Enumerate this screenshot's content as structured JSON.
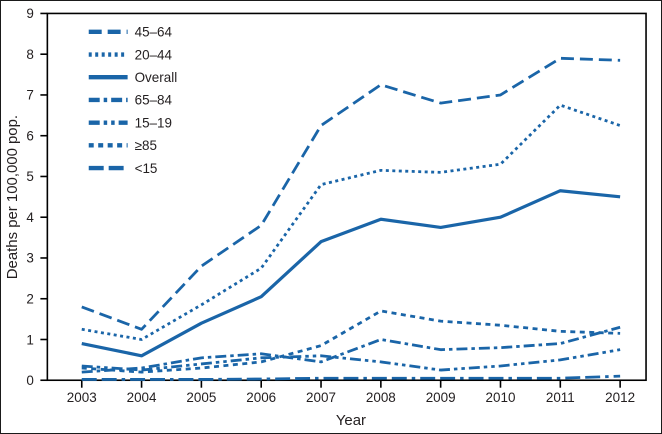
{
  "chart_data": {
    "type": "line",
    "title": "",
    "xlabel": "Year",
    "ylabel": "Deaths per 100,000 pop.",
    "x": [
      2003,
      2004,
      2005,
      2006,
      2007,
      2008,
      2009,
      2010,
      2011,
      2012
    ],
    "ylim": [
      0,
      9
    ],
    "yticks": [
      0,
      1,
      2,
      3,
      4,
      5,
      6,
      7,
      8,
      9
    ],
    "grid": false,
    "legend_position": "upper-left",
    "line_color": "#1a65a8",
    "axis_color": "#231f20",
    "series": [
      {
        "name": "45–64",
        "dash": "long-dash",
        "values": [
          1.8,
          1.25,
          2.8,
          3.8,
          6.25,
          7.25,
          6.8,
          7.0,
          7.9,
          7.85
        ]
      },
      {
        "name": "20–44",
        "dash": "dotted",
        "values": [
          1.25,
          1.0,
          1.85,
          2.75,
          4.8,
          5.15,
          5.1,
          5.3,
          6.75,
          6.25
        ]
      },
      {
        "name": "Overall",
        "dash": "solid",
        "values": [
          0.9,
          0.6,
          1.4,
          2.05,
          3.4,
          3.95,
          3.75,
          4.0,
          4.65,
          4.5
        ]
      },
      {
        "name": "65–84",
        "dash": "dash-dot",
        "values": [
          0.2,
          0.3,
          0.55,
          0.65,
          0.45,
          1.0,
          0.75,
          0.8,
          0.9,
          1.3
        ]
      },
      {
        "name": "15–19",
        "dash": "dash-dot-dot",
        "values": [
          0.35,
          0.25,
          0.4,
          0.55,
          0.6,
          0.45,
          0.25,
          0.35,
          0.5,
          0.75
        ]
      },
      {
        "name": "≥85",
        "dash": "square-dash",
        "values": [
          0.3,
          0.2,
          0.3,
          0.45,
          0.85,
          1.7,
          1.45,
          1.35,
          1.2,
          1.15
        ]
      },
      {
        "name": "<15",
        "dash": "long-dash-dash-dot",
        "values": [
          0.02,
          0.02,
          0.02,
          0.03,
          0.05,
          0.05,
          0.05,
          0.05,
          0.05,
          0.1
        ]
      }
    ]
  }
}
